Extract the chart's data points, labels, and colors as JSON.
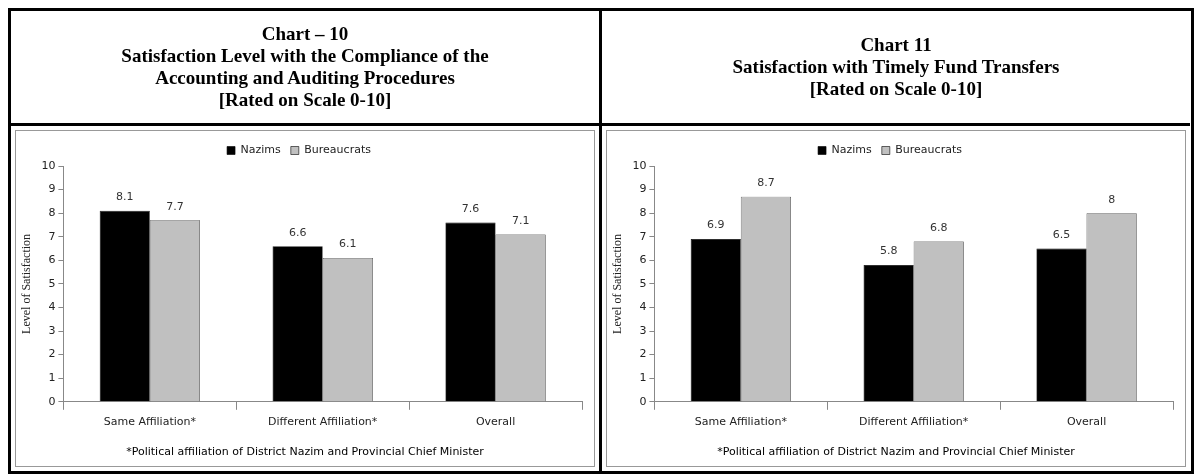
{
  "chart_data": [
    {
      "type": "bar",
      "title": "Chart – 10\nSatisfaction Level with the Compliance of the\nAccounting and Auditing Procedures\n[Rated on Scale 0-10]",
      "ylabel": "Level of Satisfaction",
      "categories": [
        "Same Affiliation*",
        "Different Affiliation*",
        "Overall"
      ],
      "series": [
        {
          "name": "Nazims",
          "color": "#000000",
          "values": [
            8.1,
            6.6,
            7.6
          ]
        },
        {
          "name": "Bureaucrats",
          "color": "#c0c0c0",
          "values": [
            7.7,
            6.1,
            7.1
          ]
        }
      ],
      "ylim": [
        0,
        10
      ],
      "yticks": [
        0,
        1,
        2,
        3,
        4,
        5,
        6,
        7,
        8,
        9,
        10
      ],
      "grid": false,
      "legend": "top",
      "data_labels": true,
      "annotations": [
        "*Political affiliation of District Nazim and Provincial Chief Minister"
      ]
    },
    {
      "type": "bar",
      "title": "Chart 11\nSatisfaction with Timely Fund Transfers\n[Rated on Scale 0-10]",
      "ylabel": "Level of Satisfaction",
      "categories": [
        "Same Affiliation*",
        "Different Affiliation*",
        "Overall"
      ],
      "series": [
        {
          "name": "Nazims",
          "color": "#000000",
          "values": [
            6.9,
            5.8,
            6.5
          ]
        },
        {
          "name": "Bureaucrats",
          "color": "#c0c0c0",
          "values": [
            8.7,
            6.8,
            8
          ]
        }
      ],
      "ylim": [
        0,
        10
      ],
      "yticks": [
        0,
        1,
        2,
        3,
        4,
        5,
        6,
        7,
        8,
        9,
        10
      ],
      "grid": false,
      "legend": "top",
      "data_labels": true,
      "annotations": [
        "*Political affiliation of District Nazim and Provincial Chief Minister"
      ]
    }
  ]
}
